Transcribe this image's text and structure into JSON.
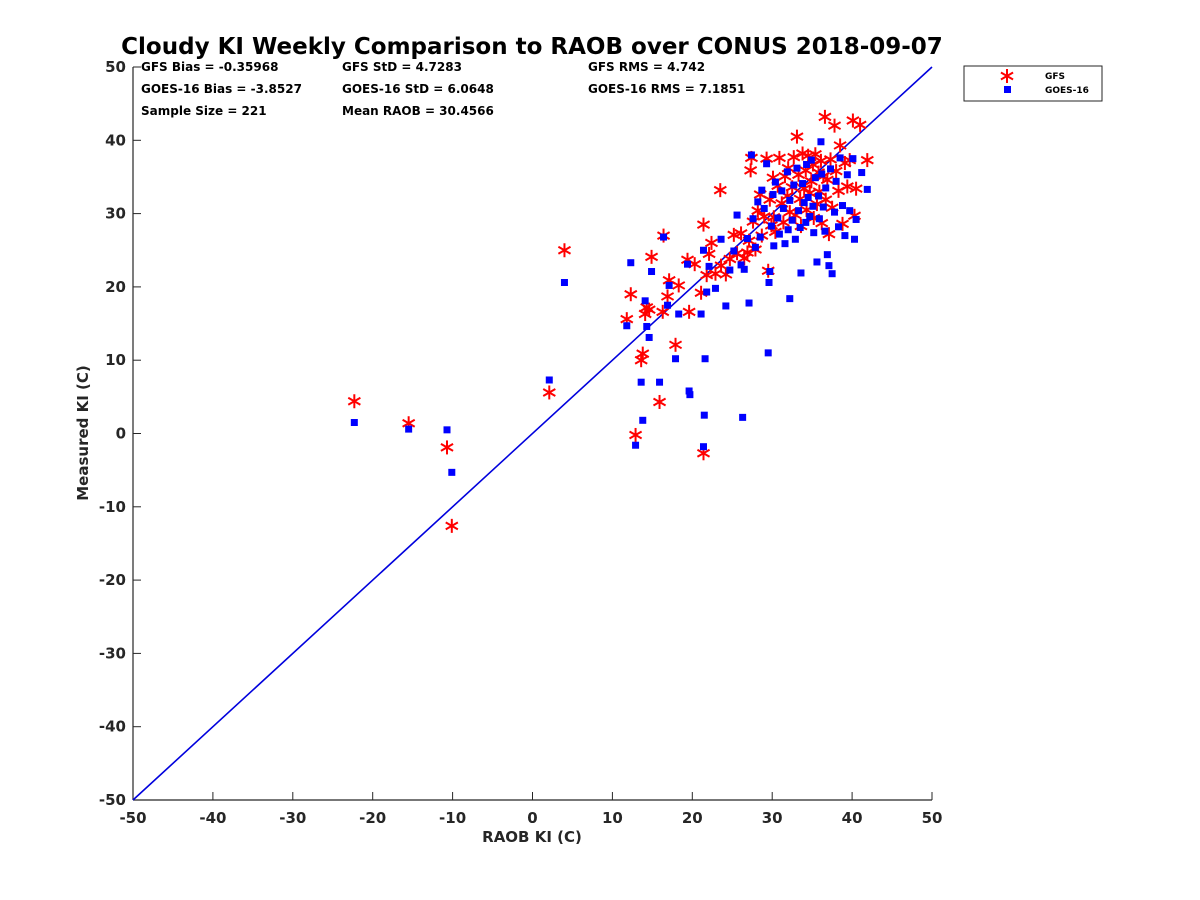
{
  "chart_data": {
    "type": "scatter",
    "title": "Cloudy KI Weekly Comparison to RAOB over CONUS 2018-09-07",
    "xlabel": "RAOB KI (C)",
    "ylabel": "Measured KI (C)",
    "xlim": [
      -50,
      50
    ],
    "ylim": [
      -50,
      50
    ],
    "xticks": [
      "-50",
      "-40",
      "-30",
      "-20",
      "-10",
      "0",
      "10",
      "20",
      "30",
      "40",
      "50"
    ],
    "yticks": [
      "-50",
      "-40",
      "-30",
      "-20",
      "-10",
      "0",
      "10",
      "20",
      "30",
      "40",
      "50"
    ],
    "grid": false,
    "legend_position": "outside-top-right",
    "stats": {
      "gfs_bias": "GFS Bias = -0.35968",
      "gfs_std": "GFS StD = 4.7283",
      "gfs_rms": "GFS RMS = 4.742",
      "goes_bias": "GOES-16 Bias = -3.8527",
      "goes_std": "GOES-16 StD = 6.0648",
      "goes_rms": "GOES-16 RMS = 7.1851",
      "sample_size": "Sample Size = 221",
      "mean_raob": "Mean RAOB = 30.4566"
    },
    "reference_line": {
      "x": [
        -50,
        50
      ],
      "y": [
        -50,
        50
      ],
      "color": "#0000dd"
    },
    "series": [
      {
        "name": "GFS",
        "marker": "asterisk",
        "color": "#ff0000",
        "points": [
          [
            -22.3,
            4.4
          ],
          [
            -15.5,
            1.4
          ],
          [
            -10.7,
            -1.9
          ],
          [
            -10.1,
            -12.6
          ],
          [
            2.1,
            5.6
          ],
          [
            4,
            25
          ],
          [
            11.8,
            15.6
          ],
          [
            12.3,
            19
          ],
          [
            12.9,
            -0.2
          ],
          [
            13.6,
            10
          ],
          [
            13.8,
            10.9
          ],
          [
            14.1,
            16.3
          ],
          [
            14.3,
            17.2
          ],
          [
            14.6,
            16.9
          ],
          [
            14.9,
            24.1
          ],
          [
            15.9,
            4.3
          ],
          [
            16.3,
            16.6
          ],
          [
            16.4,
            27
          ],
          [
            16.9,
            18.7
          ],
          [
            17.1,
            20.9
          ],
          [
            17.9,
            12.1
          ],
          [
            18.3,
            20.2
          ],
          [
            19.4,
            23.7
          ],
          [
            19.6,
            16.6
          ],
          [
            20.3,
            23.1
          ],
          [
            21.1,
            19.2
          ],
          [
            21.4,
            28.5
          ],
          [
            21.4,
            -2.7
          ],
          [
            21.8,
            21.6
          ],
          [
            22.1,
            24.5
          ],
          [
            22.4,
            26
          ],
          [
            22.9,
            21.8
          ],
          [
            23.5,
            33.2
          ],
          [
            23.6,
            22.9
          ],
          [
            24.2,
            21.7
          ],
          [
            24.7,
            23.8
          ],
          [
            25.2,
            27.1
          ],
          [
            25.6,
            24.6
          ],
          [
            26.1,
            27.3
          ],
          [
            26.5,
            23.9
          ],
          [
            26.9,
            24.7
          ],
          [
            27.1,
            26.3
          ],
          [
            27.3,
            35.9
          ],
          [
            27.4,
            37.6
          ],
          [
            27.6,
            28.9
          ],
          [
            27.9,
            25.1
          ],
          [
            28.2,
            30.4
          ],
          [
            28.5,
            32.6
          ],
          [
            28.7,
            27
          ],
          [
            29,
            29.6
          ],
          [
            29.3,
            37.5
          ],
          [
            29.5,
            22.2
          ],
          [
            29.7,
            31.9
          ],
          [
            29.9,
            28.4
          ],
          [
            30.1,
            34.9
          ],
          [
            30.2,
            29.5
          ],
          [
            30.4,
            27.5
          ],
          [
            30.7,
            33.8
          ],
          [
            30.9,
            37.6
          ],
          [
            31.2,
            31.4
          ],
          [
            31.4,
            28.8
          ],
          [
            31.6,
            35.1
          ],
          [
            31.9,
            32.4
          ],
          [
            32,
            36.2
          ],
          [
            32.2,
            30.2
          ],
          [
            32.5,
            33.6
          ],
          [
            32.7,
            37.7
          ],
          [
            32.9,
            29.8
          ],
          [
            33.1,
            40.5
          ],
          [
            33.3,
            35.3
          ],
          [
            33.5,
            32
          ],
          [
            33.6,
            28.3
          ],
          [
            33.8,
            38.2
          ],
          [
            34,
            33.4
          ],
          [
            34.2,
            35.9
          ],
          [
            34.3,
            30.5
          ],
          [
            34.5,
            37.9
          ],
          [
            34.7,
            32.8
          ],
          [
            34.9,
            34.4
          ],
          [
            35.1,
            36.7
          ],
          [
            35.2,
            29.4
          ],
          [
            35.4,
            38.1
          ],
          [
            35.6,
            31.3
          ],
          [
            35.8,
            35.6
          ],
          [
            35.9,
            33
          ],
          [
            36.1,
            37.2
          ],
          [
            36.2,
            28.7
          ],
          [
            36.4,
            35.1
          ],
          [
            36.6,
            43.2
          ],
          [
            36.7,
            31.9
          ],
          [
            36.9,
            34.6
          ],
          [
            37.1,
            27.2
          ],
          [
            37.3,
            37.4
          ],
          [
            37.5,
            30.8
          ],
          [
            37.8,
            42
          ],
          [
            38,
            35.8
          ],
          [
            38.3,
            33.1
          ],
          [
            38.5,
            39.3
          ],
          [
            38.8,
            28.6
          ],
          [
            39.1,
            36.9
          ],
          [
            39.4,
            33.7
          ],
          [
            39.7,
            37.3
          ],
          [
            40.1,
            42.7
          ],
          [
            40.3,
            29.7
          ],
          [
            40.5,
            33.4
          ],
          [
            41,
            42.1
          ],
          [
            41.9,
            37.3
          ]
        ]
      },
      {
        "name": "GOES-16",
        "marker": "square",
        "color": "#0000ff",
        "points": [
          [
            -22.3,
            1.5
          ],
          [
            -15.5,
            0.6
          ],
          [
            -10.7,
            0.5
          ],
          [
            -10.1,
            -5.3
          ],
          [
            2.1,
            7.3
          ],
          [
            4,
            20.6
          ],
          [
            11.8,
            14.7
          ],
          [
            12.3,
            23.3
          ],
          [
            12.9,
            -1.6
          ],
          [
            13.6,
            7
          ],
          [
            13.8,
            1.8
          ],
          [
            14.1,
            18.1
          ],
          [
            14.3,
            14.6
          ],
          [
            14.6,
            13.1
          ],
          [
            14.9,
            22.1
          ],
          [
            15.9,
            7
          ],
          [
            16.4,
            26.8
          ],
          [
            16.9,
            17.5
          ],
          [
            17.1,
            20.2
          ],
          [
            17.9,
            10.2
          ],
          [
            18.3,
            16.3
          ],
          [
            19.4,
            23.1
          ],
          [
            19.6,
            5.8
          ],
          [
            19.7,
            5.3
          ],
          [
            21.1,
            16.3
          ],
          [
            21.4,
            25
          ],
          [
            21.4,
            -1.8
          ],
          [
            21.6,
            10.2
          ],
          [
            21.5,
            2.5
          ],
          [
            21.8,
            19.3
          ],
          [
            22.1,
            22.8
          ],
          [
            22.9,
            19.8
          ],
          [
            23.6,
            26.5
          ],
          [
            24.2,
            17.4
          ],
          [
            24.7,
            22.3
          ],
          [
            25.2,
            24.9
          ],
          [
            25.6,
            29.8
          ],
          [
            26.1,
            23
          ],
          [
            26.3,
            2.2
          ],
          [
            26.5,
            22.4
          ],
          [
            26.9,
            26.6
          ],
          [
            27.1,
            17.8
          ],
          [
            27.4,
            38
          ],
          [
            27.6,
            29.3
          ],
          [
            27.9,
            25.4
          ],
          [
            28.2,
            31.6
          ],
          [
            28.5,
            26.8
          ],
          [
            28.7,
            33.2
          ],
          [
            29,
            30.7
          ],
          [
            29.3,
            36.8
          ],
          [
            29.5,
            11
          ],
          [
            29.6,
            20.6
          ],
          [
            29.7,
            22.1
          ],
          [
            29.9,
            28.3
          ],
          [
            30.1,
            32.6
          ],
          [
            30.2,
            25.6
          ],
          [
            30.4,
            34.3
          ],
          [
            30.7,
            29.4
          ],
          [
            30.9,
            27.2
          ],
          [
            31.2,
            33.1
          ],
          [
            31.4,
            30.7
          ],
          [
            31.6,
            25.9
          ],
          [
            31.9,
            35.7
          ],
          [
            32,
            27.8
          ],
          [
            32.2,
            18.4
          ],
          [
            32.2,
            31.8
          ],
          [
            32.5,
            29.1
          ],
          [
            32.7,
            33.9
          ],
          [
            32.9,
            26.5
          ],
          [
            33.1,
            36.2
          ],
          [
            33.3,
            30.4
          ],
          [
            33.5,
            28.1
          ],
          [
            33.6,
            21.9
          ],
          [
            33.8,
            34.1
          ],
          [
            34,
            31.5
          ],
          [
            34.2,
            28.8
          ],
          [
            34.3,
            36.7
          ],
          [
            34.5,
            32.2
          ],
          [
            34.7,
            29.6
          ],
          [
            34.9,
            37.3
          ],
          [
            35.1,
            31
          ],
          [
            35.2,
            27.4
          ],
          [
            35.4,
            34.9
          ],
          [
            35.6,
            23.4
          ],
          [
            35.8,
            32.4
          ],
          [
            35.9,
            29.3
          ],
          [
            36.1,
            39.8
          ],
          [
            36.2,
            35.4
          ],
          [
            36.4,
            30.9
          ],
          [
            36.6,
            27.6
          ],
          [
            36.7,
            33.5
          ],
          [
            36.9,
            24.4
          ],
          [
            37.1,
            22.9
          ],
          [
            37.3,
            36.1
          ],
          [
            37.5,
            21.8
          ],
          [
            37.8,
            30.2
          ],
          [
            38,
            34.4
          ],
          [
            38.3,
            28.2
          ],
          [
            38.5,
            37.6
          ],
          [
            38.8,
            31.1
          ],
          [
            39.1,
            27
          ],
          [
            39.4,
            35.3
          ],
          [
            39.7,
            30.4
          ],
          [
            40.1,
            37.5
          ],
          [
            40.3,
            26.5
          ],
          [
            40.5,
            29.2
          ],
          [
            41.2,
            35.6
          ],
          [
            41.9,
            33.3
          ]
        ]
      }
    ]
  }
}
